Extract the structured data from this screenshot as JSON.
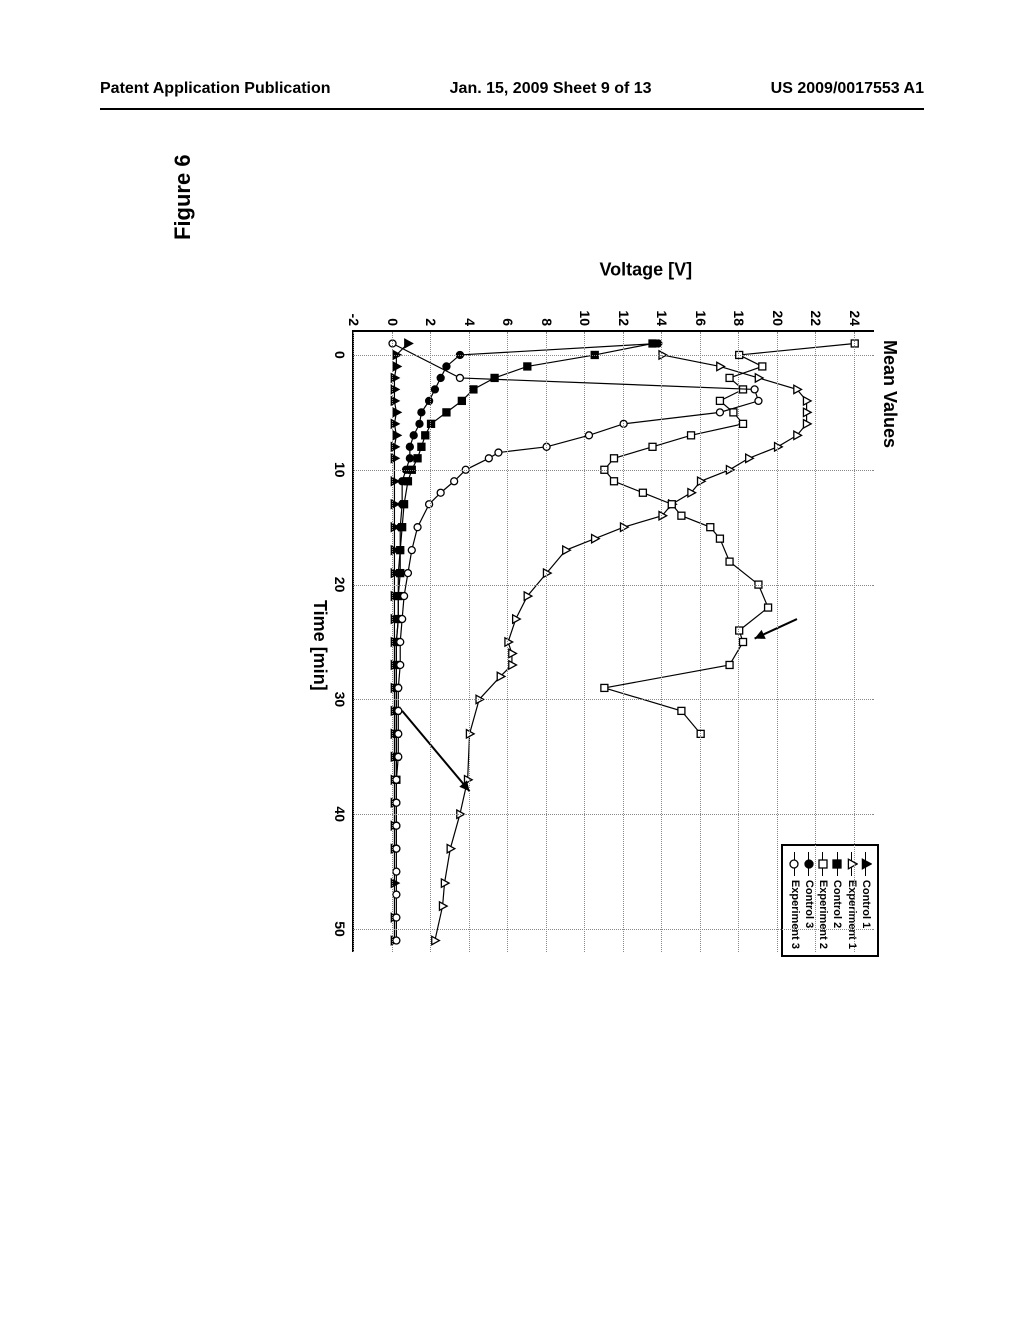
{
  "header": {
    "left": "Patent Application Publication",
    "center": "Jan. 15, 2009  Sheet 9 of 13",
    "right": "US 2009/0017553 A1"
  },
  "figure": {
    "label": "Figure 6",
    "chart": {
      "type": "line-scatter",
      "title": "Mean Values",
      "xlabel": "Time [min]",
      "ylabel": "Voltage [V]",
      "xlim": [
        -2,
        52
      ],
      "ylim": [
        -2,
        25
      ],
      "xticks": [
        0,
        10,
        20,
        30,
        40,
        50
      ],
      "yticks": [
        -2,
        0,
        2,
        4,
        6,
        8,
        10,
        12,
        14,
        16,
        18,
        20,
        22,
        24
      ],
      "background_color": "#ffffff",
      "grid_color": "#888888",
      "grid_style": "dotted",
      "axis_color": "#000000",
      "line_width": 1.2,
      "marker_size": 7,
      "series": [
        {
          "name": "Control 1",
          "marker": "triangle-filled",
          "color": "#000000",
          "fill": "#000000",
          "data": [
            [
              -1,
              0.8
            ],
            [
              0,
              0.2
            ],
            [
              1,
              0.2
            ],
            [
              2,
              0.1
            ],
            [
              3,
              0.1
            ],
            [
              4,
              0.1
            ],
            [
              5,
              0.2
            ],
            [
              6,
              0.1
            ],
            [
              7,
              0.2
            ],
            [
              8,
              0.1
            ],
            [
              9,
              0.1
            ],
            [
              11,
              0.1
            ],
            [
              13,
              0.1
            ],
            [
              15,
              0.1
            ],
            [
              17,
              0.1
            ],
            [
              19,
              0.1
            ],
            [
              21,
              0.1
            ],
            [
              23,
              0.1
            ],
            [
              25,
              0.1
            ],
            [
              27,
              0.1
            ],
            [
              29,
              0.1
            ],
            [
              31,
              0.1
            ],
            [
              33,
              0.1
            ],
            [
              35,
              0.1
            ],
            [
              37,
              0.1
            ],
            [
              39,
              0.1
            ],
            [
              41,
              0.1
            ],
            [
              43,
              0.1
            ],
            [
              46,
              0.1
            ],
            [
              49,
              0.1
            ],
            [
              51,
              0.1
            ]
          ]
        },
        {
          "name": "Experiment 1",
          "marker": "triangle-open",
          "color": "#000000",
          "fill": "none",
          "data": [
            [
              0,
              14
            ],
            [
              1,
              17
            ],
            [
              2,
              19
            ],
            [
              3,
              21
            ],
            [
              4,
              21.5
            ],
            [
              5,
              21.5
            ],
            [
              6,
              21.5
            ],
            [
              7,
              21
            ],
            [
              8,
              20
            ],
            [
              9,
              18.5
            ],
            [
              10,
              17.5
            ],
            [
              11,
              16
            ],
            [
              12,
              15.5
            ],
            [
              13,
              14.5
            ],
            [
              14,
              14
            ],
            [
              15,
              12
            ],
            [
              16,
              10.5
            ],
            [
              17,
              9
            ],
            [
              19,
              8
            ],
            [
              21,
              7
            ],
            [
              23,
              6.4
            ],
            [
              25,
              6
            ],
            [
              26,
              6.2
            ],
            [
              27,
              6.2
            ],
            [
              28,
              5.6
            ],
            [
              30,
              4.5
            ],
            [
              33,
              4
            ],
            [
              37,
              3.9
            ],
            [
              40,
              3.5
            ],
            [
              43,
              3
            ],
            [
              46,
              2.7
            ],
            [
              48,
              2.6
            ],
            [
              51,
              2.2
            ]
          ]
        },
        {
          "name": "Control 2",
          "marker": "square-filled",
          "color": "#000000",
          "fill": "#000000",
          "data": [
            [
              -1,
              13.5
            ],
            [
              0,
              10.5
            ],
            [
              1,
              7
            ],
            [
              2,
              5.3
            ],
            [
              3,
              4.2
            ],
            [
              4,
              3.6
            ],
            [
              5,
              2.8
            ],
            [
              6,
              2.0
            ],
            [
              7,
              1.7
            ],
            [
              8,
              1.5
            ],
            [
              9,
              1.3
            ],
            [
              10,
              1.0
            ],
            [
              11,
              0.8
            ],
            [
              13,
              0.6
            ],
            [
              15,
              0.5
            ],
            [
              17,
              0.4
            ],
            [
              19,
              0.4
            ],
            [
              21,
              0.3
            ],
            [
              23,
              0.3
            ],
            [
              25,
              0.2
            ],
            [
              27,
              0.2
            ],
            [
              29,
              0.2
            ],
            [
              31,
              0.2
            ],
            [
              33,
              0.2
            ],
            [
              35,
              0.2
            ],
            [
              37,
              0.2
            ]
          ]
        },
        {
          "name": "Experiment 2",
          "marker": "square-open",
          "color": "#000000",
          "fill": "none",
          "data": [
            [
              -1,
              24
            ],
            [
              0,
              18
            ],
            [
              1,
              19.2
            ],
            [
              2,
              17.5
            ],
            [
              3,
              18.2
            ],
            [
              4,
              17
            ],
            [
              5,
              17.7
            ],
            [
              6,
              18.2
            ],
            [
              7,
              15.5
            ],
            [
              8,
              13.5
            ],
            [
              9,
              11.5
            ],
            [
              10,
              11
            ],
            [
              11,
              11.5
            ],
            [
              12,
              13
            ],
            [
              13,
              14.5
            ],
            [
              14,
              15
            ],
            [
              15,
              16.5
            ],
            [
              16,
              17
            ],
            [
              18,
              17.5
            ],
            [
              20,
              19
            ],
            [
              22,
              19.5
            ],
            [
              24,
              18
            ],
            [
              25,
              18.2
            ],
            [
              27,
              17.5
            ],
            [
              29,
              11
            ],
            [
              31,
              15
            ],
            [
              33,
              16
            ]
          ]
        },
        {
          "name": "Control 3",
          "marker": "circle-filled",
          "color": "#000000",
          "fill": "#000000",
          "data": [
            [
              -1,
              13.8
            ],
            [
              0,
              3.5
            ],
            [
              1,
              2.8
            ],
            [
              2,
              2.5
            ],
            [
              3,
              2.2
            ],
            [
              4,
              1.9
            ],
            [
              5,
              1.5
            ],
            [
              6,
              1.4
            ],
            [
              7,
              1.1
            ],
            [
              8,
              0.9
            ],
            [
              9,
              0.9
            ],
            [
              10,
              0.7
            ],
            [
              11,
              0.5
            ],
            [
              13,
              0.5
            ],
            [
              15,
              0.4
            ],
            [
              17,
              0.4
            ],
            [
              19,
              0.3
            ],
            [
              21,
              0.3
            ],
            [
              23,
              0.3
            ],
            [
              25,
              0.2
            ],
            [
              27,
              0.2
            ],
            [
              29,
              0.2
            ],
            [
              31,
              0.2
            ],
            [
              33,
              0.2
            ],
            [
              35,
              0.2
            ],
            [
              37,
              0.2
            ],
            [
              39,
              0.2
            ],
            [
              41,
              0.2
            ],
            [
              43,
              0.2
            ]
          ]
        },
        {
          "name": "Experiment 3",
          "marker": "circle-open",
          "color": "#000000",
          "fill": "none",
          "data": [
            [
              -1,
              0
            ],
            [
              2,
              3.5
            ],
            [
              3,
              18.8
            ],
            [
              4,
              19
            ],
            [
              5,
              17
            ],
            [
              6,
              12
            ],
            [
              7,
              10.2
            ],
            [
              8,
              8
            ],
            [
              8.5,
              5.5
            ],
            [
              9,
              5
            ],
            [
              10,
              3.8
            ],
            [
              11,
              3.2
            ],
            [
              12,
              2.5
            ],
            [
              13,
              1.9
            ],
            [
              15,
              1.3
            ],
            [
              17,
              1.0
            ],
            [
              19,
              0.8
            ],
            [
              21,
              0.6
            ],
            [
              23,
              0.5
            ],
            [
              25,
              0.4
            ],
            [
              27,
              0.4
            ],
            [
              29,
              0.3
            ],
            [
              31,
              0.3
            ],
            [
              33,
              0.3
            ],
            [
              35,
              0.3
            ],
            [
              37,
              0.2
            ],
            [
              39,
              0.2
            ],
            [
              41,
              0.2
            ],
            [
              43,
              0.2
            ],
            [
              45,
              0.2
            ],
            [
              47,
              0.2
            ],
            [
              49,
              0.2
            ],
            [
              51,
              0.2
            ]
          ]
        }
      ],
      "arrows": [
        {
          "from": [
            23,
            21
          ],
          "to": [
            24.7,
            18.8
          ]
        },
        {
          "from": [
            31,
            0.5
          ],
          "to": [
            38,
            4
          ]
        }
      ]
    }
  }
}
